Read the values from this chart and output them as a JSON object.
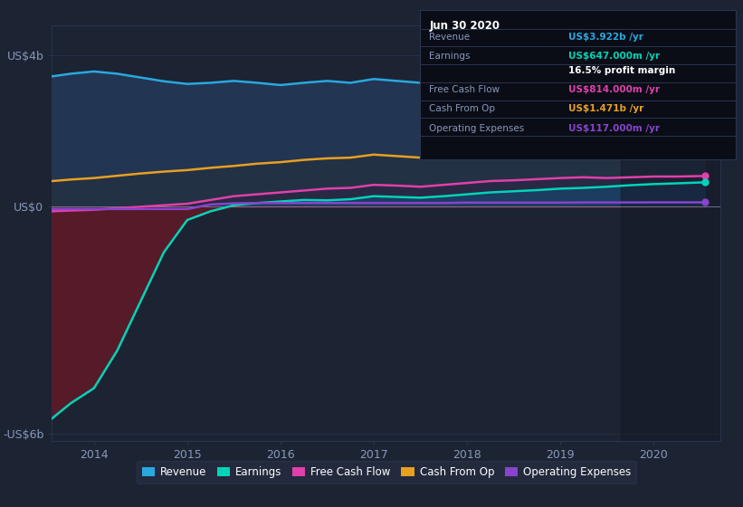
{
  "bg_color": "#1c2333",
  "plot_bg_color": "#1c2333",
  "ylabel_top": "US$4b",
  "ylabel_zero": "US$0",
  "ylabel_bottom": "-US$6b",
  "xlim": [
    2013.55,
    2020.72
  ],
  "ylim": [
    -6.2,
    4.8
  ],
  "x": [
    2013.55,
    2013.75,
    2014.0,
    2014.25,
    2014.5,
    2014.75,
    2015.0,
    2015.25,
    2015.5,
    2015.75,
    2016.0,
    2016.25,
    2016.5,
    2016.75,
    2017.0,
    2017.25,
    2017.5,
    2017.75,
    2018.0,
    2018.25,
    2018.5,
    2018.75,
    2019.0,
    2019.25,
    2019.5,
    2019.75,
    2020.0,
    2020.25,
    2020.55
  ],
  "revenue": [
    3.45,
    3.52,
    3.58,
    3.52,
    3.42,
    3.32,
    3.25,
    3.28,
    3.33,
    3.28,
    3.22,
    3.28,
    3.33,
    3.28,
    3.38,
    3.33,
    3.28,
    3.25,
    3.33,
    3.38,
    3.44,
    3.49,
    3.54,
    3.59,
    3.64,
    3.69,
    3.74,
    3.84,
    3.92
  ],
  "earnings": [
    -5.6,
    -5.2,
    -4.8,
    -3.8,
    -2.5,
    -1.2,
    -0.35,
    -0.12,
    0.04,
    0.1,
    0.14,
    0.18,
    0.17,
    0.2,
    0.28,
    0.26,
    0.24,
    0.28,
    0.33,
    0.38,
    0.41,
    0.44,
    0.48,
    0.5,
    0.53,
    0.57,
    0.6,
    0.62,
    0.647
  ],
  "free_cash_flow": [
    -0.12,
    -0.1,
    -0.08,
    -0.04,
    0.0,
    0.04,
    0.08,
    0.18,
    0.28,
    0.33,
    0.38,
    0.43,
    0.48,
    0.5,
    0.58,
    0.56,
    0.53,
    0.58,
    0.63,
    0.68,
    0.7,
    0.73,
    0.76,
    0.78,
    0.76,
    0.78,
    0.8,
    0.8,
    0.814
  ],
  "cash_from_op": [
    0.68,
    0.72,
    0.76,
    0.82,
    0.88,
    0.93,
    0.97,
    1.03,
    1.08,
    1.14,
    1.18,
    1.24,
    1.28,
    1.3,
    1.38,
    1.34,
    1.3,
    1.34,
    1.38,
    1.4,
    1.43,
    1.44,
    1.46,
    1.46,
    1.47,
    1.47,
    1.47,
    1.47,
    1.471
  ],
  "op_expenses": [
    -0.06,
    -0.06,
    -0.06,
    -0.06,
    -0.06,
    -0.06,
    -0.06,
    0.06,
    0.09,
    0.1,
    0.1,
    0.1,
    0.1,
    0.1,
    0.1,
    0.1,
    0.1,
    0.1,
    0.11,
    0.11,
    0.11,
    0.11,
    0.11,
    0.115,
    0.115,
    0.115,
    0.117,
    0.117,
    0.117
  ],
  "revenue_color": "#29a8e0",
  "earnings_color": "#00d4b8",
  "free_cash_flow_color": "#e040aa",
  "cash_from_op_color": "#e8a020",
  "op_expenses_color": "#8844cc",
  "revenue_fill_color": "#1a3a6a",
  "earnings_fill_neg_color": "#5a1a28",
  "earnings_fill_pos_color": "#1e3d5c",
  "area_between_color": "#2a3545",
  "legend_bg": "#252d40",
  "grid_color": "#2a3550",
  "tooltip_bg": "#0a0d16",
  "tooltip_border": "#2a3550",
  "dark_shade_color": "#131926",
  "xticks": [
    2014,
    2015,
    2016,
    2017,
    2018,
    2019,
    2020
  ],
  "yticks": [
    -6,
    0,
    4
  ],
  "legend_items": [
    "Revenue",
    "Earnings",
    "Free Cash Flow",
    "Cash From Op",
    "Operating Expenses"
  ],
  "legend_colors": [
    "#29a8e0",
    "#00d4b8",
    "#e040aa",
    "#e8a020",
    "#8844cc"
  ],
  "tooltip_title": "Jun 30 2020",
  "tooltip_rows": [
    [
      "Revenue",
      "US$3.922b /yr",
      "#29a8e0"
    ],
    [
      "Earnings",
      "US$647.000m /yr",
      "#00d4b8"
    ],
    [
      "",
      "16.5% profit margin",
      "white"
    ],
    [
      "Free Cash Flow",
      "US$814.000m /yr",
      "#e040aa"
    ],
    [
      "Cash From Op",
      "US$1.471b /yr",
      "#e8a020"
    ],
    [
      "Operating Expenses",
      "US$117.000m /yr",
      "#8844cc"
    ]
  ]
}
